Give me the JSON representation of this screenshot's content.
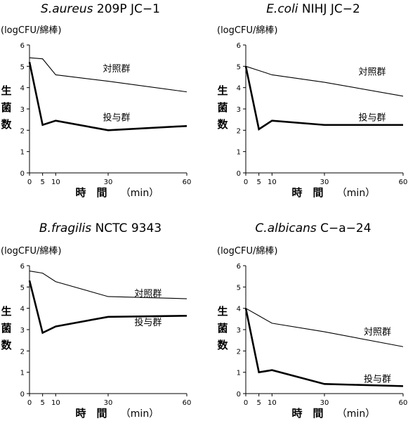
{
  "unit_label": "(logCFU/綿棒)",
  "ylabel_chars": [
    "生",
    "菌",
    "数"
  ],
  "xlabel_main": "時　間",
  "xlabel_unit": "（min）",
  "chart_data": [
    {
      "type": "line",
      "title_species": "S.aureus",
      "title_strain": " 209P JC−1",
      "x": [
        0,
        5,
        10,
        30,
        60
      ],
      "xticks": [
        "0",
        "5",
        "10",
        "30",
        "60"
      ],
      "ylim": [
        0,
        6
      ],
      "yticks": [
        "0",
        "1",
        "2",
        "3",
        "4",
        "5",
        "6"
      ],
      "series": [
        {
          "name": "対照群",
          "values": [
            5.4,
            5.35,
            4.6,
            4.3,
            3.8
          ],
          "weight": "thin"
        },
        {
          "name": "投与群",
          "values": [
            5.2,
            2.25,
            2.45,
            2.0,
            2.2
          ],
          "weight": "bold"
        }
      ]
    },
    {
      "type": "line",
      "title_species": "E.coli",
      "title_strain": " NIHJ  JC−2",
      "x": [
        0,
        5,
        10,
        30,
        60
      ],
      "xticks": [
        "0",
        "5",
        "10",
        "30",
        "60"
      ],
      "ylim": [
        0,
        6
      ],
      "yticks": [
        "0",
        "1",
        "2",
        "3",
        "4",
        "5",
        "6"
      ],
      "series": [
        {
          "name": "対照群",
          "values": [
            5.0,
            4.8,
            4.6,
            4.25,
            3.6
          ],
          "weight": "thin"
        },
        {
          "name": "投与群",
          "values": [
            5.0,
            2.05,
            2.45,
            2.25,
            2.25
          ],
          "weight": "bold"
        }
      ]
    },
    {
      "type": "line",
      "title_species": "B.fragilis",
      "title_strain": "  NCTC 9343",
      "x": [
        0,
        5,
        10,
        30,
        60
      ],
      "xticks": [
        "0",
        "5",
        "10",
        "30",
        "60"
      ],
      "ylim": [
        0,
        6
      ],
      "yticks": [
        "0",
        "1",
        "2",
        "3",
        "4",
        "5",
        "6"
      ],
      "series": [
        {
          "name": "対照群",
          "values": [
            5.75,
            5.65,
            5.25,
            4.55,
            4.45
          ],
          "weight": "thin"
        },
        {
          "name": "投与群",
          "values": [
            5.3,
            2.85,
            3.15,
            3.6,
            3.65
          ],
          "weight": "bold"
        }
      ]
    },
    {
      "type": "line",
      "title_species": "C.albicans",
      "title_strain": " C−a−24",
      "x": [
        0,
        5,
        10,
        30,
        60
      ],
      "xticks": [
        "0",
        "5",
        "10",
        "30",
        "60"
      ],
      "ylim": [
        0,
        6
      ],
      "yticks": [
        "0",
        "1",
        "2",
        "3",
        "4",
        "5",
        "6"
      ],
      "series": [
        {
          "name": "対照群",
          "values": [
            4.0,
            3.65,
            3.3,
            2.9,
            2.2
          ],
          "weight": "thin"
        },
        {
          "name": "投与群",
          "values": [
            4.0,
            1.0,
            1.1,
            0.45,
            0.35
          ],
          "weight": "bold"
        }
      ]
    }
  ]
}
